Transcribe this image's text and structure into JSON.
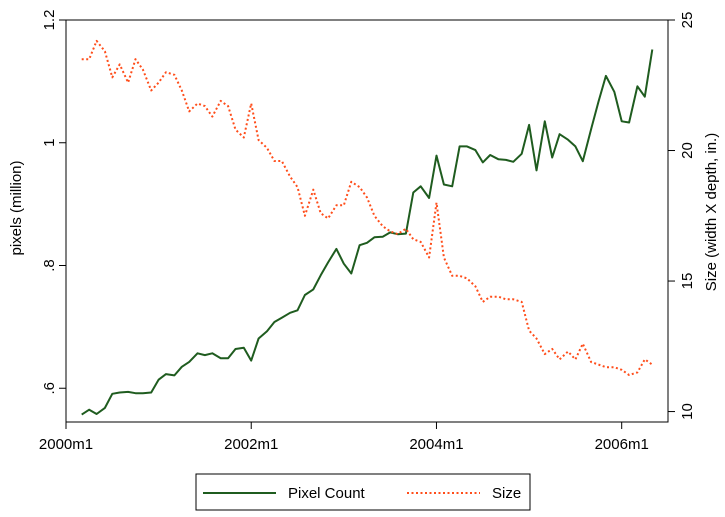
{
  "chart_data": {
    "type": "line",
    "x_ticks": [
      "2000m1",
      "2002m1",
      "2004m1",
      "2006m1"
    ],
    "x_tick_values": [
      2000.0,
      2002.0,
      2004.0,
      2006.0
    ],
    "xlim": [
      2000.0,
      2006.5
    ],
    "left_axis": {
      "label": "pixels (million)",
      "ticks": [
        ".6",
        ".8",
        "1",
        "1.2"
      ],
      "tick_values": [
        0.6,
        0.8,
        1.0,
        1.2
      ],
      "ylim": [
        0.545,
        1.2
      ]
    },
    "right_axis": {
      "label": "Size (width X depth, in.)",
      "ticks": [
        "10",
        "15",
        "20",
        "25"
      ],
      "tick_values": [
        10,
        15,
        20,
        25
      ],
      "ylim": [
        9.6,
        25
      ]
    },
    "grid": false,
    "legend_position": "bottom",
    "series": [
      {
        "name": "Pixel Count",
        "axis": "left",
        "color": "#1f5c1f",
        "dash": "solid",
        "x": [
          2000.17,
          2000.25,
          2000.33,
          2000.42,
          2000.5,
          2000.58,
          2000.67,
          2000.75,
          2000.83,
          2000.92,
          2001.0,
          2001.08,
          2001.17,
          2001.25,
          2001.33,
          2001.42,
          2001.5,
          2001.58,
          2001.67,
          2001.75,
          2001.83,
          2001.92,
          2002.0,
          2002.08,
          2002.17,
          2002.25,
          2002.33,
          2002.42,
          2002.5,
          2002.58,
          2002.67,
          2002.75,
          2002.83,
          2002.92,
          2003.0,
          2003.08,
          2003.17,
          2003.25,
          2003.33,
          2003.42,
          2003.5,
          2003.58,
          2003.67,
          2003.75,
          2003.83,
          2003.92,
          2004.0,
          2004.08,
          2004.17,
          2004.25,
          2004.33,
          2004.42,
          2004.5,
          2004.58,
          2004.67,
          2004.75,
          2004.83,
          2004.92,
          2005.0,
          2005.08,
          2005.17,
          2005.25,
          2005.33,
          2005.42,
          2005.5,
          2005.58,
          2005.67,
          2005.75,
          2005.83,
          2005.92,
          2006.0,
          2006.08,
          2006.17,
          2006.25,
          2006.33
        ],
        "y": [
          0.557,
          0.565,
          0.558,
          0.568,
          0.591,
          0.593,
          0.594,
          0.592,
          0.592,
          0.593,
          0.614,
          0.623,
          0.621,
          0.635,
          0.643,
          0.657,
          0.654,
          0.657,
          0.649,
          0.649,
          0.664,
          0.666,
          0.645,
          0.681,
          0.693,
          0.708,
          0.715,
          0.723,
          0.727,
          0.752,
          0.761,
          0.784,
          0.805,
          0.827,
          0.803,
          0.787,
          0.833,
          0.837,
          0.846,
          0.847,
          0.854,
          0.851,
          0.852,
          0.919,
          0.929,
          0.91,
          0.979,
          0.932,
          0.929,
          0.994,
          0.994,
          0.988,
          0.968,
          0.98,
          0.973,
          0.972,
          0.969,
          0.982,
          1.029,
          0.955,
          1.035,
          0.976,
          1.014,
          1.005,
          0.994,
          0.97,
          1.022,
          1.067,
          1.109,
          1.083,
          1.035,
          1.033,
          1.092,
          1.075,
          1.152
        ]
      },
      {
        "name": "Size",
        "axis": "right",
        "color": "#ff4d1a",
        "dash": "dotted",
        "x": [
          2000.17,
          2000.25,
          2000.33,
          2000.42,
          2000.5,
          2000.58,
          2000.67,
          2000.75,
          2000.83,
          2000.92,
          2001.0,
          2001.08,
          2001.17,
          2001.25,
          2001.33,
          2001.42,
          2001.5,
          2001.58,
          2001.67,
          2001.75,
          2001.83,
          2001.92,
          2002.0,
          2002.08,
          2002.17,
          2002.25,
          2002.33,
          2002.42,
          2002.5,
          2002.58,
          2002.67,
          2002.75,
          2002.83,
          2002.92,
          2003.0,
          2003.08,
          2003.17,
          2003.25,
          2003.33,
          2003.42,
          2003.5,
          2003.58,
          2003.67,
          2003.75,
          2003.83,
          2003.92,
          2004.0,
          2004.08,
          2004.17,
          2004.25,
          2004.33,
          2004.42,
          2004.5,
          2004.58,
          2004.67,
          2004.75,
          2004.83,
          2004.92,
          2005.0,
          2005.08,
          2005.17,
          2005.25,
          2005.33,
          2005.42,
          2005.5,
          2005.58,
          2005.67,
          2005.75,
          2005.83,
          2005.92,
          2006.0,
          2006.08,
          2006.17,
          2006.25,
          2006.33
        ],
        "y": [
          23.5,
          23.5,
          24.2,
          23.8,
          22.8,
          23.3,
          22.6,
          23.5,
          23.1,
          22.3,
          22.6,
          23.0,
          22.9,
          22.3,
          21.5,
          21.8,
          21.7,
          21.3,
          21.9,
          21.7,
          20.8,
          20.5,
          21.8,
          20.4,
          20.1,
          19.6,
          19.6,
          19.0,
          18.6,
          17.5,
          18.5,
          17.6,
          17.4,
          17.9,
          17.9,
          18.8,
          18.6,
          18.2,
          17.5,
          17.1,
          16.9,
          16.8,
          17.0,
          16.6,
          16.5,
          15.9,
          18.0,
          15.9,
          15.2,
          15.2,
          15.1,
          14.8,
          14.2,
          14.4,
          14.4,
          14.3,
          14.3,
          14.2,
          13.1,
          12.8,
          12.2,
          12.4,
          12.0,
          12.3,
          12.0,
          12.6,
          11.9,
          11.8,
          11.7,
          11.7,
          11.6,
          11.4,
          11.5,
          12.0,
          11.8
        ]
      }
    ]
  }
}
